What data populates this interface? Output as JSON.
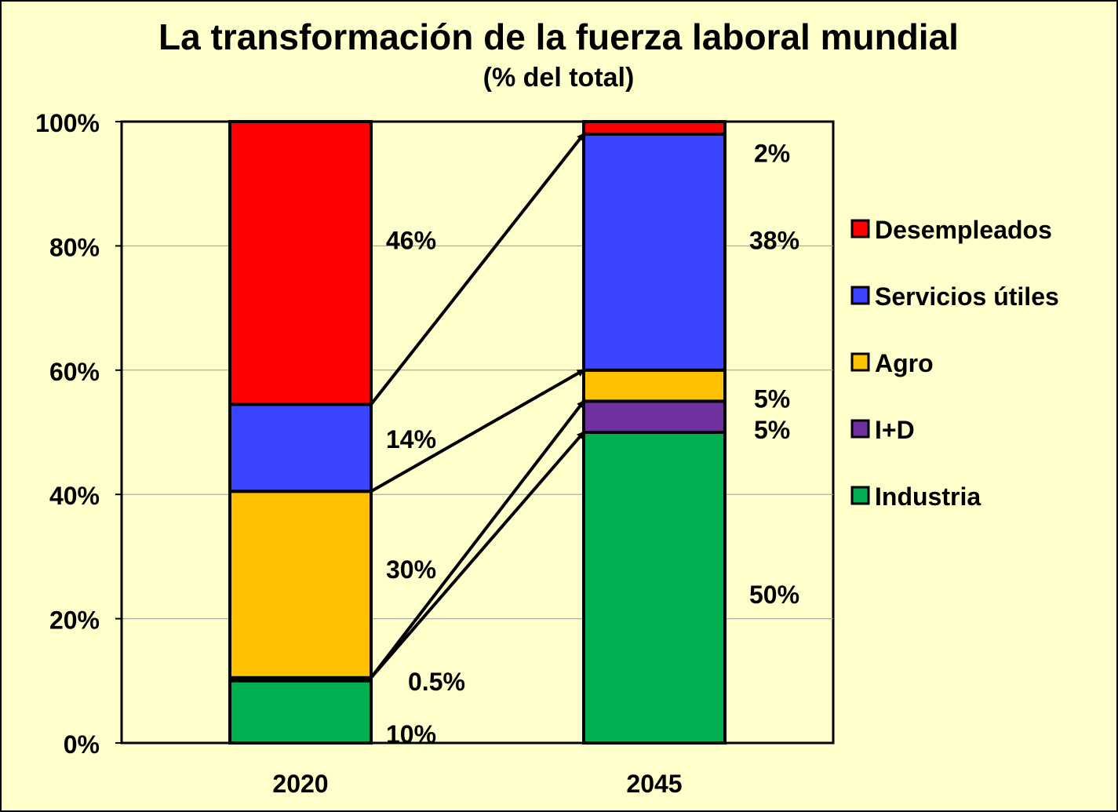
{
  "chart_data": {
    "type": "bar",
    "stacked": true,
    "title": "La transformación de la fuerza laboral mundial",
    "subtitle": "(% del total)",
    "categories": [
      "2020",
      "2045"
    ],
    "ylim": [
      0,
      100
    ],
    "yticks": [
      "0%",
      "20%",
      "40%",
      "60%",
      "80%",
      "100%"
    ],
    "grid": true,
    "legend_position": "right",
    "series": [
      {
        "name": "Industria",
        "color": "#00b050",
        "values": [
          10,
          50
        ]
      },
      {
        "name": "I+D",
        "color": "#7030a0",
        "values": [
          0.5,
          5
        ]
      },
      {
        "name": "Agro",
        "color": "#ffc000",
        "values": [
          30,
          5
        ]
      },
      {
        "name": "Servicios útiles",
        "color": "#3b45ff",
        "values": [
          14,
          38
        ]
      },
      {
        "name": "Desempleados",
        "color": "#ff0000",
        "values": [
          45.5,
          2
        ]
      }
    ],
    "labels_2020": [
      {
        "text": "46%",
        "y": 81
      },
      {
        "text": "14%",
        "y": 49
      },
      {
        "text": "30%",
        "y": 28
      },
      {
        "text": "0.5%",
        "y": 10
      },
      {
        "text": "10%",
        "y": 1.5
      }
    ],
    "labels_2045": [
      {
        "text": "2%",
        "y": 95
      },
      {
        "text": "38%",
        "y": 81
      },
      {
        "text": "5%",
        "y": 55.5
      },
      {
        "text": "5%",
        "y": 50.5
      },
      {
        "text": "50%",
        "y": 24
      }
    ],
    "arrows": [
      {
        "from": 54.5,
        "to": 98
      },
      {
        "from": 40.5,
        "to": 60
      },
      {
        "from": 10.5,
        "to": 55
      },
      {
        "from": 10.5,
        "to": 50
      }
    ]
  }
}
